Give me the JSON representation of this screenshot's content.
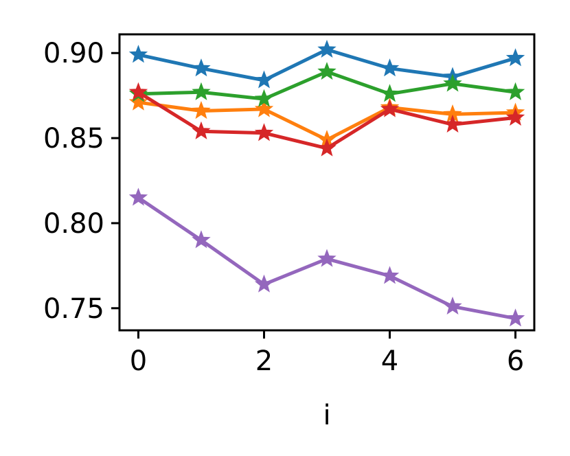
{
  "chart_data": {
    "type": "line",
    "title": "",
    "xlabel": "i",
    "ylabel": "",
    "x": [
      0,
      1,
      2,
      3,
      4,
      5,
      6
    ],
    "xlim": [
      -0.3,
      6.3
    ],
    "ylim": [
      0.737,
      0.911
    ],
    "x_ticks": [
      0,
      2,
      4,
      6
    ],
    "x_tick_labels": [
      "0",
      "2",
      "4",
      "6"
    ],
    "y_ticks": [
      0.75,
      0.8,
      0.85,
      0.9
    ],
    "y_tick_labels": [
      "0.75",
      "0.80",
      "0.85",
      "0.90"
    ],
    "grid": false,
    "marker": "star",
    "series": [
      {
        "color": "#1f77b4",
        "values": [
          0.899,
          0.891,
          0.884,
          0.902,
          0.891,
          0.886,
          0.897
        ]
      },
      {
        "color": "#ff7f0e",
        "values": [
          0.871,
          0.866,
          0.867,
          0.849,
          0.868,
          0.864,
          0.865
        ]
      },
      {
        "color": "#2ca02c",
        "values": [
          0.876,
          0.877,
          0.873,
          0.889,
          0.876,
          0.882,
          0.877
        ]
      },
      {
        "color": "#d62728",
        "values": [
          0.877,
          0.854,
          0.853,
          0.844,
          0.867,
          0.858,
          0.862
        ]
      },
      {
        "color": "#9467bd",
        "values": [
          0.815,
          0.79,
          0.764,
          0.779,
          0.769,
          0.751,
          0.744
        ]
      }
    ]
  }
}
